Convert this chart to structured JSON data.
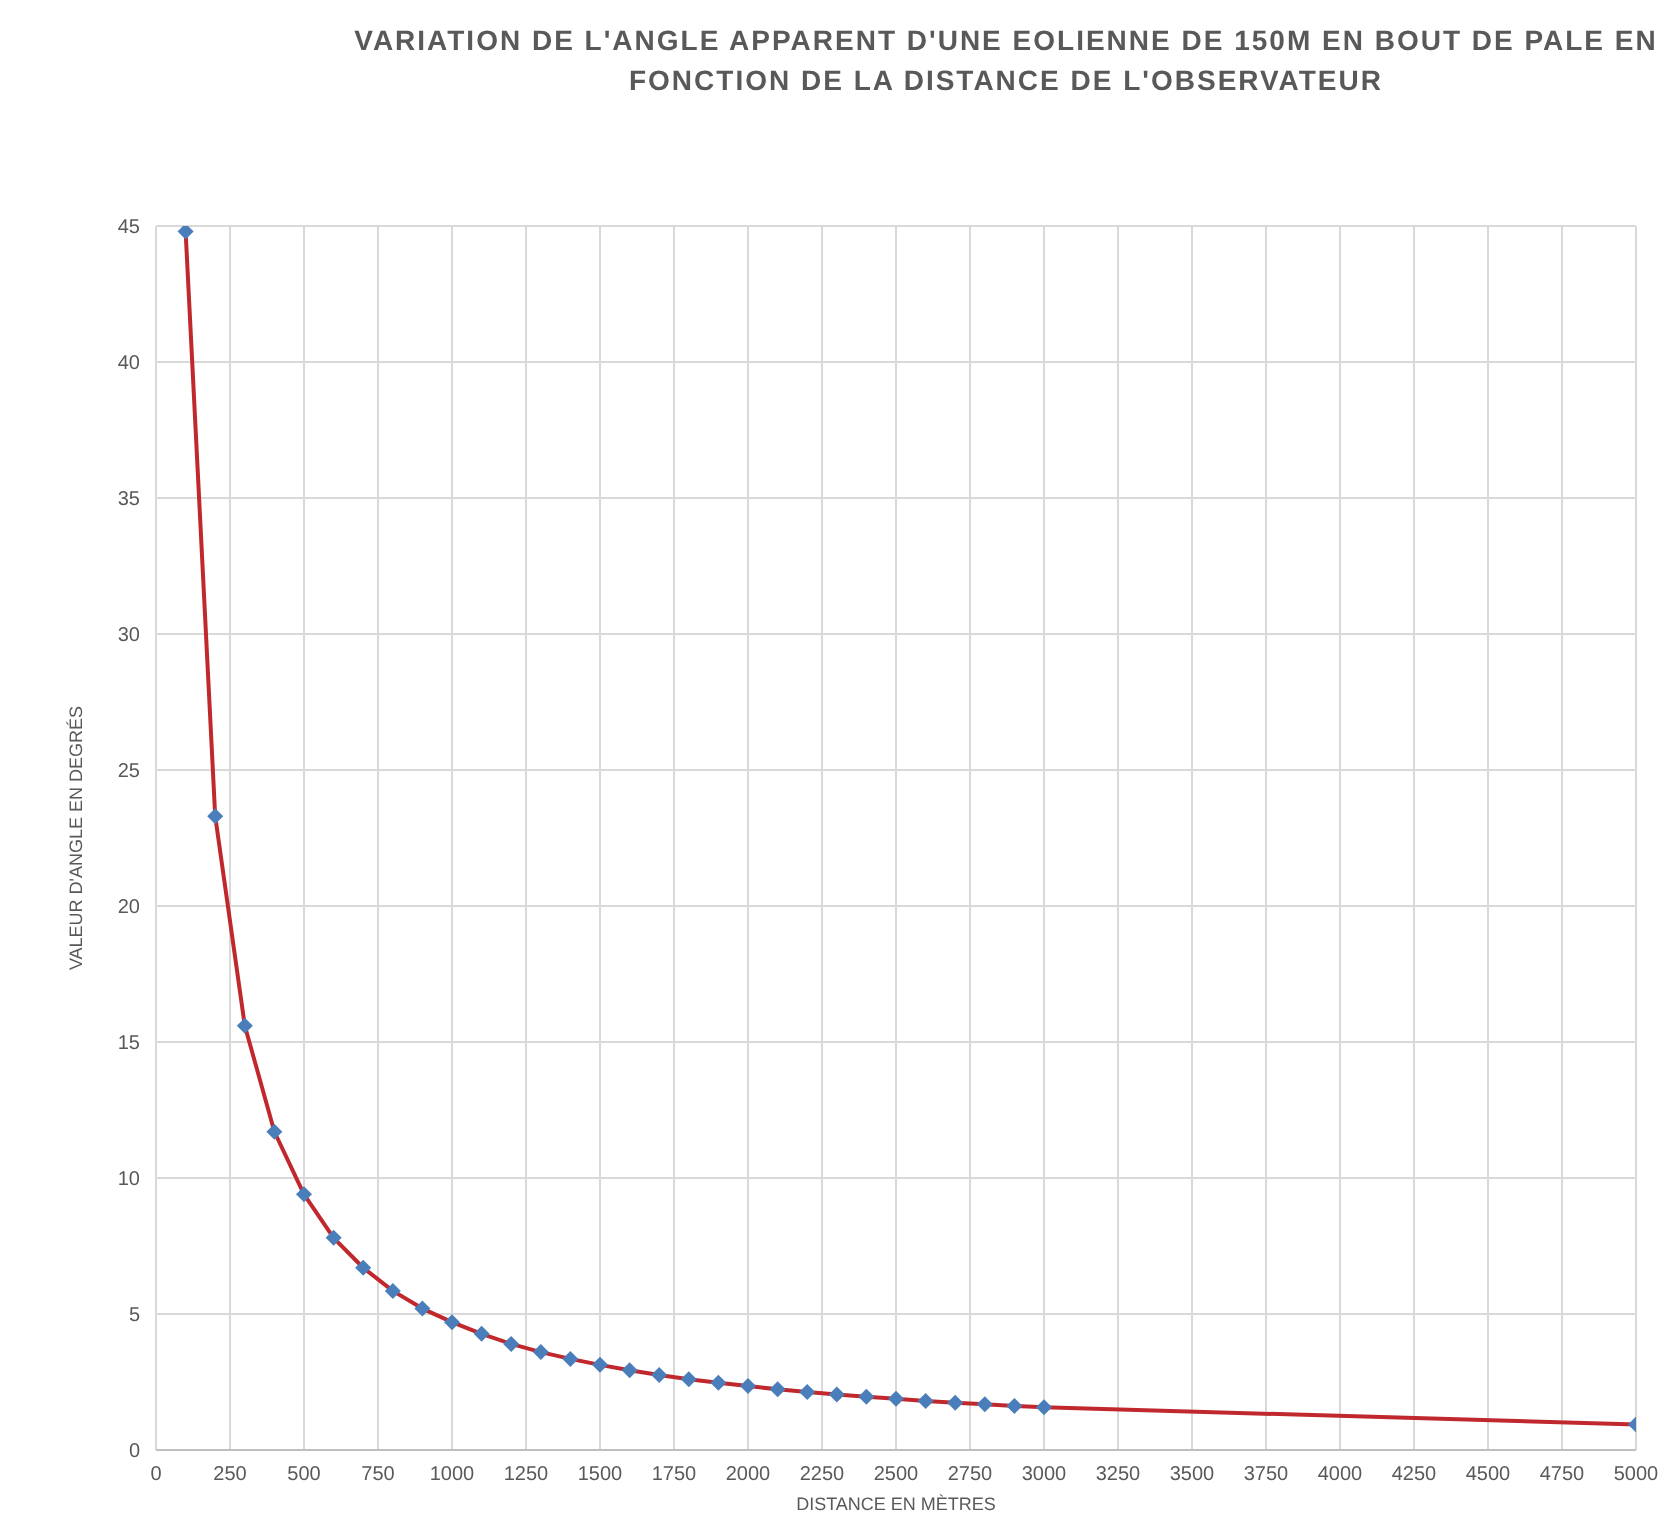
{
  "chart_data": {
    "type": "line",
    "title": "VARIATION DE L'ANGLE APPARENT D'UNE EOLIENNE DE 150M EN BOUT DE PALE EN FONCTION DE LA DISTANCE DE L'OBSERVATEUR",
    "xlabel": "DISTANCE EN MÈTRES",
    "ylabel": "VALEUR D'ANGLE EN DEGRÉS",
    "x": [
      100,
      200,
      300,
      400,
      500,
      600,
      700,
      800,
      900,
      1000,
      1100,
      1200,
      1300,
      1400,
      1500,
      1600,
      1700,
      1800,
      1900,
      2000,
      2100,
      2200,
      2300,
      2400,
      2500,
      2600,
      2700,
      2800,
      2900,
      3000,
      5000
    ],
    "series": [
      {
        "color": "#c0282d",
        "colors": [
          "#4a7ebb",
          "#4a7ebb",
          "#4a7ebb",
          "#4a7ebb",
          "#4a7ebb",
          "#4a7ebb",
          "#4a7ebb",
          "#4a7ebb",
          "#4a7ebb",
          "#4a7ebb",
          "#4a7ebb",
          "#4a7ebb",
          "#4a7ebb",
          "#4a7ebb",
          "#4a7ebb",
          "#4a7ebb",
          "#4a7ebb",
          "#4a7ebb",
          "#4a7ebb",
          "#4a7ebb",
          "#4a7ebb",
          "#4a7ebb",
          "#4a7ebb",
          "#4a7ebb",
          "#4a7ebb",
          "#4a7ebb",
          "#4a7ebb",
          "#4a7ebb",
          "#4a7ebb",
          "#4a7ebb",
          "#4a7ebb"
        ],
        "values": [
          44.8,
          23.3,
          15.6,
          11.7,
          9.4,
          7.8,
          6.7,
          5.85,
          5.2,
          4.7,
          4.27,
          3.9,
          3.6,
          3.35,
          3.13,
          2.93,
          2.76,
          2.6,
          2.47,
          2.35,
          2.23,
          2.13,
          2.04,
          1.96,
          1.88,
          1.8,
          1.74,
          1.68,
          1.62,
          1.57,
          0.94
        ]
      }
    ],
    "xlim": [
      0,
      5000
    ],
    "xticks": [
      0,
      250,
      500,
      750,
      1000,
      1250,
      1500,
      1750,
      2000,
      2250,
      2500,
      2750,
      3000,
      3250,
      3500,
      3750,
      4000,
      4250,
      4500,
      4750,
      5000
    ],
    "ylim": [
      0,
      45
    ],
    "yticks": [
      0,
      5,
      10,
      15,
      20,
      25,
      30,
      35,
      40,
      45
    ],
    "grid": true,
    "marker": "diamond",
    "line_style": "solid"
  }
}
